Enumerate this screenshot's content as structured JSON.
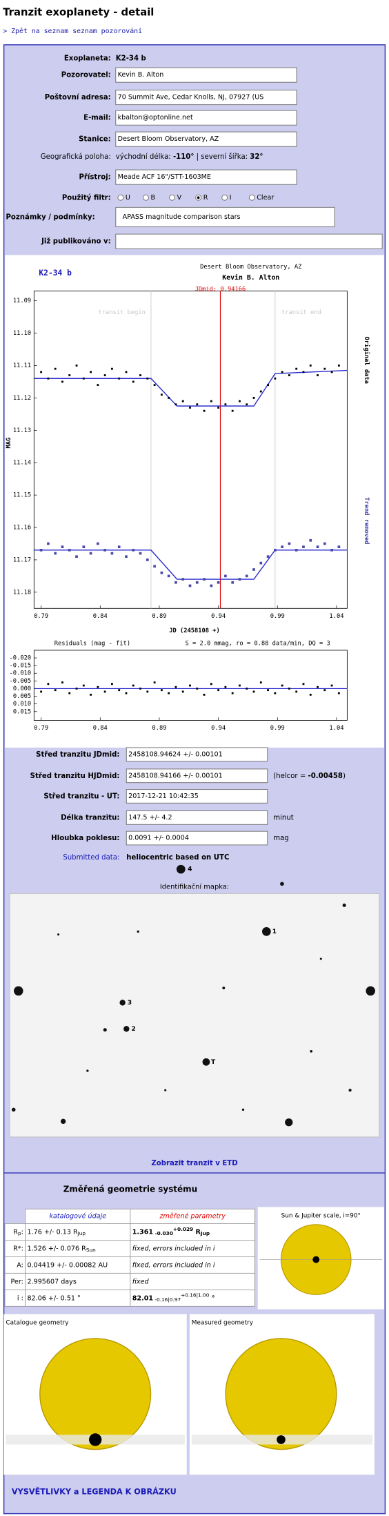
{
  "header": {
    "title": "Tranzit exoplanety - detail",
    "back_link": "> Zpět na seznam seznam pozorování"
  },
  "form": {
    "exoplanet": {
      "label": "Exoplaneta:",
      "value": "K2-34 b"
    },
    "observer": {
      "label": "Pozorovatel:",
      "value": "Kevin B. Alton"
    },
    "address": {
      "label": "Poštovní adresa:",
      "value": "70 Summit Ave, Cedar Knolls, NJ, 07927 (US"
    },
    "email": {
      "label": "E-mail:",
      "value": "kbalton@optonline.net"
    },
    "station": {
      "label": "Stanice:",
      "value": "Desert Bloom Observatory, AZ"
    },
    "location": {
      "label": "Geografická poloha:",
      "parts": [
        "východní délka: ",
        "-110°",
        " | severní šířka: ",
        "32°"
      ]
    },
    "instrument": {
      "label": "Přístroj:",
      "value": "Meade ACF 16\"/STT-1603ME"
    },
    "filter": {
      "label": "Použitý filtr:",
      "options": [
        "U",
        "B",
        "V",
        "R",
        "I",
        "Clear"
      ],
      "selected": 3
    },
    "notes": {
      "label": "Poznámky / podmínky:",
      "value": "APASS magnitude comparison stars"
    },
    "published": {
      "label": "Již publikováno v:"
    }
  },
  "chart_data": [
    {
      "type": "scatter",
      "title": "K2-34 b",
      "annotations": {
        "observatory": "Desert Bloom Observatory, AZ",
        "observer": "Kevin B. Alton",
        "jdmid_label": "JDmid: 0.94166",
        "transit_begin_label": "transit begin",
        "transit_end_label": "transit end"
      },
      "jdmid": 0.94166,
      "jdmid_color": "#e00000",
      "transit_begin": 0.883,
      "transit_end": 0.988,
      "xlabel": "JD (2458108 +)",
      "ylabel": "MAG",
      "x": [
        0.79,
        0.796,
        0.802,
        0.808,
        0.814,
        0.82,
        0.826,
        0.832,
        0.838,
        0.844,
        0.85,
        0.856,
        0.862,
        0.868,
        0.874,
        0.88,
        0.886,
        0.892,
        0.898,
        0.904,
        0.91,
        0.916,
        0.922,
        0.928,
        0.934,
        0.94,
        0.946,
        0.952,
        0.958,
        0.964,
        0.97,
        0.976,
        0.982,
        0.988,
        0.994,
        1.0,
        1.006,
        1.012,
        1.018,
        1.024,
        1.03,
        1.036,
        1.042
      ],
      "series": [
        {
          "name": "Original data",
          "color": "#000000",
          "values": [
            11.112,
            11.114,
            11.111,
            11.115,
            11.113,
            11.11,
            11.114,
            11.112,
            11.116,
            11.113,
            11.111,
            11.114,
            11.112,
            11.115,
            11.113,
            11.114,
            11.116,
            11.119,
            11.12,
            11.122,
            11.121,
            11.123,
            11.122,
            11.124,
            11.121,
            11.123,
            11.122,
            11.124,
            11.121,
            11.122,
            11.12,
            11.118,
            11.116,
            11.114,
            11.112,
            11.113,
            11.111,
            11.112,
            11.11,
            11.113,
            11.111,
            11.112,
            11.11
          ]
        },
        {
          "name": "Trend removed",
          "color": "#4848a8",
          "values": [
            11.167,
            11.165,
            11.168,
            11.166,
            11.167,
            11.169,
            11.166,
            11.168,
            11.165,
            11.167,
            11.168,
            11.166,
            11.169,
            11.167,
            11.168,
            11.17,
            11.172,
            11.174,
            11.175,
            11.177,
            11.176,
            11.178,
            11.177,
            11.176,
            11.178,
            11.177,
            11.175,
            11.177,
            11.176,
            11.175,
            11.173,
            11.171,
            11.169,
            11.167,
            11.166,
            11.165,
            11.167,
            11.166,
            11.164,
            11.166,
            11.165,
            11.167,
            11.166
          ]
        }
      ],
      "fit": {
        "color": "#2a2ad0",
        "x": [
          0.784,
          0.883,
          0.905,
          0.97,
          0.988,
          1.049
        ],
        "values": [
          [
            11.114,
            11.114,
            11.1225,
            11.1225,
            11.1125,
            11.1115
          ],
          [
            11.167,
            11.167,
            11.176,
            11.176,
            11.167,
            11.167
          ]
        ]
      },
      "xlim": [
        0.784,
        1.049
      ],
      "ylim": [
        11.087,
        11.185
      ],
      "invert_y": true,
      "xticks": [
        0.79,
        0.84,
        0.89,
        0.94,
        0.99,
        1.04
      ],
      "yticks": [
        11.09,
        {
          "value": 11.1,
          "label": "11.10"
        },
        11.11,
        11.12,
        11.13,
        11.14,
        11.15,
        11.16,
        11.17,
        11.18
      ]
    },
    {
      "type": "scatter",
      "title": "Residuals (mag - fit)",
      "stats": "S = 2.0 mmag, ro = 0.88 data/min, DQ = 3",
      "x": [
        0.79,
        0.796,
        0.802,
        0.808,
        0.814,
        0.82,
        0.826,
        0.832,
        0.838,
        0.844,
        0.85,
        0.856,
        0.862,
        0.868,
        0.874,
        0.88,
        0.886,
        0.892,
        0.898,
        0.904,
        0.91,
        0.916,
        0.922,
        0.928,
        0.934,
        0.94,
        0.946,
        0.952,
        0.958,
        0.964,
        0.97,
        0.976,
        0.982,
        0.988,
        0.994,
        1.0,
        1.006,
        1.012,
        1.018,
        1.024,
        1.03,
        1.036,
        1.042
      ],
      "series": [
        {
          "color": "#000000",
          "values": [
            0.002,
            -0.003,
            0.001,
            -0.004,
            0.003,
            0,
            -0.002,
            0.004,
            -0.001,
            0.002,
            -0.003,
            0.001,
            0.003,
            -0.002,
            0,
            0.002,
            -0.004,
            0.001,
            0.003,
            -0.001,
            0.002,
            -0.002,
            0,
            0.004,
            -0.003,
            0.001,
            -0.001,
            0.003,
            -0.002,
            0,
            0.002,
            -0.004,
            0.001,
            0.003,
            -0.002,
            0,
            0.002,
            -0.003,
            0.004,
            -0.001,
            0.001,
            -0.002,
            0.003
          ]
        }
      ],
      "fit_color": "#2a2ad0",
      "xlim": [
        0.784,
        1.049
      ],
      "ylim": [
        -0.025,
        0.0207
      ],
      "invert_y": true,
      "xticks": [
        0.79,
        0.84,
        0.89,
        0.94,
        0.99,
        1.04
      ],
      "yticks": [
        {
          "value": -0.02,
          "label": "-0.020"
        },
        -0.015,
        {
          "value": -0.01,
          "label": "-0.010"
        },
        -0.005,
        {
          "value": 0,
          "label": "0.000"
        },
        0.005,
        {
          "value": 0.01,
          "label": "0.010"
        },
        0.015
      ]
    }
  ],
  "results": {
    "jdmid": {
      "label": "Střed tranzitu JDmid:",
      "value": "2458108.94624 +/- 0.00101"
    },
    "hjdmid": {
      "label": "Střed tranzitu HJDmid:",
      "value": "2458108.94166 +/- 0.00101",
      "note_parts": [
        "(helcor = ",
        "-0.00458",
        ")"
      ]
    },
    "ut": {
      "label": "Střed tranzitu - UT:",
      "value": "2017-12-21 10:42:35"
    },
    "duration": {
      "label": "Délka tranzitu:",
      "value": "147.5 +/- 4.2",
      "unit": "minut"
    },
    "depth": {
      "label": "Hloubka poklesu:",
      "value": "0.0091 +/- 0.0004",
      "unit": "mag"
    },
    "submitted": {
      "label": "Submitted data:",
      "value": "heliocentric based on UTC"
    }
  },
  "map": {
    "label": "Identifikační mapka:",
    "star_labels": [
      "1",
      "2",
      "3",
      "4",
      "T"
    ],
    "link": "Zobrazit tranzit v ETD"
  },
  "geometry": {
    "title": "Změřená geometrie systému",
    "headers": [
      "katalogové údaje",
      "změřené parametry"
    ],
    "rows": [
      {
        "label": [
          {
            "text": "R"
          },
          {
            "text": "p",
            "shift": "sub"
          },
          {
            "text": ":"
          }
        ],
        "catalog": [
          {
            "text": "1.76 +/- 0.13 R"
          },
          {
            "text": "Jup",
            "shift": "sub"
          }
        ],
        "measured": [
          {
            "text": "1.361",
            "bold": true
          },
          {
            "text": " -0.030",
            "shift": "sub",
            "bold": true
          },
          {
            "text": "+0.029",
            "shift": "sup",
            "bold": true
          },
          {
            "text": " R",
            "bold": true
          },
          {
            "text": "Jup",
            "shift": "sub",
            "bold": true
          }
        ]
      },
      {
        "label": [
          {
            "text": "R*:"
          }
        ],
        "catalog": [
          {
            "text": "1.526 +/- 0.076 R"
          },
          {
            "text": "Sun",
            "shift": "sub"
          }
        ],
        "measured": [
          {
            "text": "fixed, errors included in i",
            "italic": true
          }
        ]
      },
      {
        "label": [
          {
            "text": "A:"
          }
        ],
        "catalog": [
          {
            "text": "0.04419 +/- 0.00082 AU"
          }
        ],
        "measured": [
          {
            "text": "fixed, errors included in i",
            "italic": true
          }
        ]
      },
      {
        "label": [
          {
            "text": "Per:"
          }
        ],
        "catalog": [
          {
            "text": "2.995607 days"
          }
        ],
        "measured": [
          {
            "text": "fixed",
            "italic": true
          }
        ]
      },
      {
        "label": [
          {
            "text": "i :"
          }
        ],
        "catalog": [
          {
            "text": "82.06 +/- 0.51 °"
          }
        ],
        "measured": [
          {
            "text": "82.01",
            "bold": true
          },
          {
            "text": " -0.16|0.97",
            "shift": "sub"
          },
          {
            "text": "+0.16|1.00",
            "shift": "sup"
          },
          {
            "text": " °",
            "bold": true
          }
        ]
      }
    ],
    "scale_title": "Sun & Jupiter scale, i=90°",
    "catalogue_title": "Catalogue geometry",
    "measured_title": "Measured geometry"
  },
  "footer_link": "VYSVĚTLIVKY a LEGENDA K OBRÁZKU"
}
